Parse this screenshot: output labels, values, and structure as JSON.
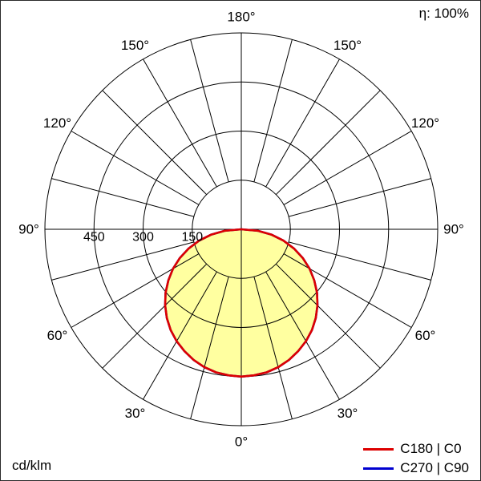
{
  "chart_data": {
    "type": "polar",
    "efficiency_label": "η: 100%",
    "units_label": "cd/klm",
    "angle_ticks_deg": [
      0,
      30,
      60,
      90,
      120,
      150,
      180
    ],
    "angle_tick_labels": [
      "0°",
      "30°",
      "60°",
      "90°",
      "120°",
      "150°",
      "180°"
    ],
    "spoke_step_deg": 15,
    "radial_ticks": [
      150,
      300,
      450
    ],
    "radial_tick_labels": [
      "150",
      "300",
      "450"
    ],
    "radial_max": 600,
    "fill_color": "#ffffa0",
    "grid_color": "#000000",
    "series": [
      {
        "name": "C270 | C90",
        "color": "#0000d0",
        "filled": false,
        "angles_deg": [
          0,
          5,
          10,
          15,
          20,
          25,
          30,
          35,
          40,
          45,
          50,
          55,
          60,
          65,
          70,
          75,
          80,
          85,
          90,
          95,
          100,
          105,
          110,
          115,
          120,
          125,
          130,
          135,
          140,
          145,
          150,
          155,
          160,
          165,
          170,
          175,
          180
        ],
        "values": [
          450,
          448,
          444,
          436,
          425,
          411,
          395,
          376,
          354,
          329,
          302,
          272,
          241,
          207,
          171,
          133,
          93,
          50,
          0,
          0,
          0,
          0,
          0,
          0,
          0,
          0,
          0,
          0,
          0,
          0,
          0,
          0,
          0,
          0,
          0,
          0,
          0
        ]
      },
      {
        "name": "C180 | C0",
        "color": "#dd0000",
        "filled": true,
        "angles_deg": [
          0,
          5,
          10,
          15,
          20,
          25,
          30,
          35,
          40,
          45,
          50,
          55,
          60,
          65,
          70,
          75,
          80,
          85,
          90,
          95,
          100,
          105,
          110,
          115,
          120,
          125,
          130,
          135,
          140,
          145,
          150,
          155,
          160,
          165,
          170,
          175,
          180
        ],
        "values": [
          450,
          448,
          444,
          436,
          425,
          411,
          395,
          376,
          354,
          329,
          302,
          272,
          241,
          207,
          171,
          133,
          93,
          50,
          0,
          0,
          0,
          0,
          0,
          0,
          0,
          0,
          0,
          0,
          0,
          0,
          0,
          0,
          0,
          0,
          0,
          0,
          0
        ]
      }
    ],
    "legend": [
      {
        "label": "C180 | C0",
        "color": "#dd0000"
      },
      {
        "label": "C270 | C90",
        "color": "#0000d0"
      }
    ]
  }
}
